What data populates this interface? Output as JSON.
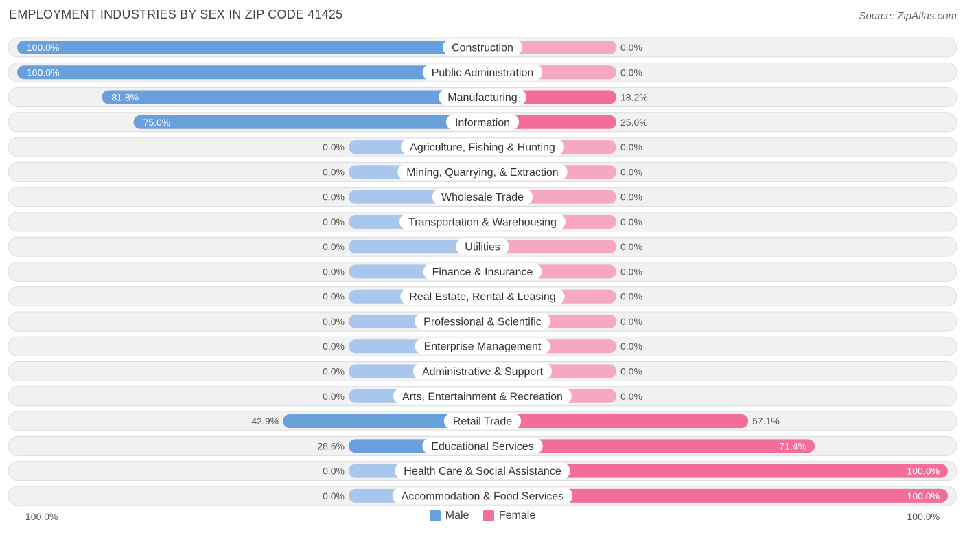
{
  "header": {
    "title": "EMPLOYMENT INDUSTRIES BY SEX IN ZIP CODE 41425",
    "source": "Source: ZipAtlas.com"
  },
  "colors": {
    "male_strong": "#6a9fde",
    "male_light": "#a9c7ec",
    "female_strong": "#f36d9a",
    "female_light": "#f6a8c1",
    "row_bg": "#f1f1f1",
    "row_border": "#dcdcdc"
  },
  "legend": {
    "male": "Male",
    "female": "Female"
  },
  "axis": {
    "left": "100.0%",
    "right": "100.0%"
  },
  "chart_data": {
    "type": "bar",
    "orientation": "horizontal-diverging",
    "title": "EMPLOYMENT INDUSTRIES BY SEX IN ZIP CODE 41425",
    "xlim": [
      0,
      100
    ],
    "categories": [
      "Construction",
      "Public Administration",
      "Manufacturing",
      "Information",
      "Agriculture, Fishing & Hunting",
      "Mining, Quarrying, & Extraction",
      "Wholesale Trade",
      "Transportation & Warehousing",
      "Utilities",
      "Finance & Insurance",
      "Real Estate, Rental & Leasing",
      "Professional & Scientific",
      "Enterprise Management",
      "Administrative & Support",
      "Arts, Entertainment & Recreation",
      "Retail Trade",
      "Educational Services",
      "Health Care & Social Assistance",
      "Accommodation & Food Services"
    ],
    "series": [
      {
        "name": "Male",
        "values": [
          100.0,
          100.0,
          81.8,
          75.0,
          0.0,
          0.0,
          0.0,
          0.0,
          0.0,
          0.0,
          0.0,
          0.0,
          0.0,
          0.0,
          0.0,
          42.9,
          28.6,
          0.0,
          0.0
        ],
        "labels": [
          "100.0%",
          "100.0%",
          "81.8%",
          "75.0%",
          "0.0%",
          "0.0%",
          "0.0%",
          "0.0%",
          "0.0%",
          "0.0%",
          "0.0%",
          "0.0%",
          "0.0%",
          "0.0%",
          "0.0%",
          "42.9%",
          "28.6%",
          "0.0%",
          "0.0%"
        ]
      },
      {
        "name": "Female",
        "values": [
          0.0,
          0.0,
          18.2,
          25.0,
          0.0,
          0.0,
          0.0,
          0.0,
          0.0,
          0.0,
          0.0,
          0.0,
          0.0,
          0.0,
          0.0,
          57.1,
          71.4,
          100.0,
          100.0
        ],
        "labels": [
          "0.0%",
          "0.0%",
          "18.2%",
          "25.0%",
          "0.0%",
          "0.0%",
          "0.0%",
          "0.0%",
          "0.0%",
          "0.0%",
          "0.0%",
          "0.0%",
          "0.0%",
          "0.0%",
          "0.0%",
          "57.1%",
          "71.4%",
          "100.0%",
          "100.0%"
        ]
      }
    ]
  }
}
